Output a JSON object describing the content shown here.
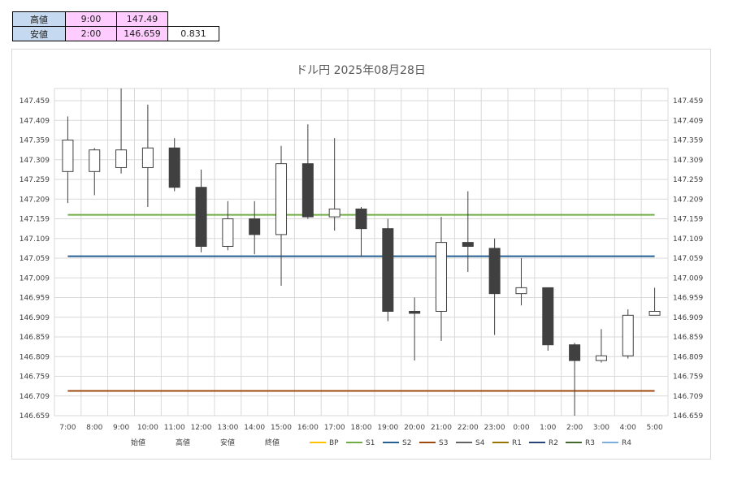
{
  "summary": {
    "high_label": "高値",
    "high_time": "9:00",
    "high_value": "147.49",
    "low_label": "安値",
    "low_time": "2:00",
    "low_value": "146.659",
    "range": "0.831"
  },
  "chart_data": {
    "type": "candlestick",
    "title": "ドル円  2025年08月28日",
    "ylim": [
      146.659,
      147.49
    ],
    "yticks": [
      "147.459",
      "147.409",
      "147.359",
      "147.309",
      "147.259",
      "147.209",
      "147.159",
      "147.109",
      "147.059",
      "147.009",
      "146.959",
      "146.909",
      "146.859",
      "146.809",
      "146.759",
      "146.709",
      "146.659"
    ],
    "categories": [
      "7:00",
      "8:00",
      "9:00",
      "10:00",
      "11:00",
      "12:00",
      "13:00",
      "14:00",
      "15:00",
      "16:00",
      "17:00",
      "18:00",
      "19:00",
      "20:00",
      "21:00",
      "22:00",
      "23:00",
      "0:00",
      "1:00",
      "2:00",
      "3:00",
      "4:00",
      "5:00"
    ],
    "candles": [
      {
        "open": 147.279,
        "high": 147.419,
        "low": 147.199,
        "close": 147.359
      },
      {
        "open": 147.279,
        "high": 147.339,
        "low": 147.219,
        "close": 147.334
      },
      {
        "open": 147.289,
        "high": 147.49,
        "low": 147.274,
        "close": 147.334
      },
      {
        "open": 147.289,
        "high": 147.449,
        "low": 147.189,
        "close": 147.339
      },
      {
        "open": 147.339,
        "high": 147.364,
        "low": 147.229,
        "close": 147.239
      },
      {
        "open": 147.239,
        "high": 147.284,
        "low": 147.074,
        "close": 147.089
      },
      {
        "open": 147.089,
        "high": 147.204,
        "low": 147.079,
        "close": 147.159
      },
      {
        "open": 147.159,
        "high": 147.204,
        "low": 147.069,
        "close": 147.119
      },
      {
        "open": 147.119,
        "high": 147.344,
        "low": 146.989,
        "close": 147.299
      },
      {
        "open": 147.299,
        "high": 147.399,
        "low": 147.159,
        "close": 147.164
      },
      {
        "open": 147.164,
        "high": 147.364,
        "low": 147.129,
        "close": 147.184
      },
      {
        "open": 147.184,
        "high": 147.189,
        "low": 147.064,
        "close": 147.134
      },
      {
        "open": 147.134,
        "high": 147.159,
        "low": 146.899,
        "close": 146.924
      },
      {
        "open": 146.924,
        "high": 146.959,
        "low": 146.799,
        "close": 146.919
      },
      {
        "open": 146.924,
        "high": 147.164,
        "low": 146.849,
        "close": 147.099
      },
      {
        "open": 147.099,
        "high": 147.229,
        "low": 147.024,
        "close": 147.089
      },
      {
        "open": 147.084,
        "high": 147.109,
        "low": 146.864,
        "close": 146.969
      },
      {
        "open": 146.969,
        "high": 147.059,
        "low": 146.939,
        "close": 146.984
      },
      {
        "open": 146.984,
        "high": 146.984,
        "low": 146.824,
        "close": 146.839
      },
      {
        "open": 146.839,
        "high": 146.844,
        "low": 146.659,
        "close": 146.799
      },
      {
        "open": 146.799,
        "high": 146.879,
        "low": 146.794,
        "close": 146.811
      },
      {
        "open": 146.811,
        "high": 146.929,
        "low": 146.804,
        "close": 146.914
      },
      {
        "open": 146.914,
        "high": 146.984,
        "low": 146.914,
        "close": 146.924
      }
    ],
    "hlines": [
      {
        "name": "S1",
        "value": 147.169,
        "color": "#70ad47"
      },
      {
        "name": "S2",
        "value": 147.064,
        "color": "#255e91"
      },
      {
        "name": "S3",
        "value": 146.722,
        "color": "#9e480e"
      }
    ],
    "legend": [
      {
        "name": "始値",
        "color": ""
      },
      {
        "name": "高値",
        "color": ""
      },
      {
        "name": "安値",
        "color": ""
      },
      {
        "name": "終値",
        "color": ""
      },
      {
        "name": "BP",
        "color": "#ffc000"
      },
      {
        "name": "S1",
        "color": "#70ad47"
      },
      {
        "name": "S2",
        "color": "#255e91"
      },
      {
        "name": "S3",
        "color": "#9e480e"
      },
      {
        "name": "S4",
        "color": "#636363"
      },
      {
        "name": "R1",
        "color": "#997300"
      },
      {
        "name": "R2",
        "color": "#264478"
      },
      {
        "name": "R3",
        "color": "#43682b"
      },
      {
        "name": "R4",
        "color": "#7cafdd"
      }
    ],
    "up_color": "#ffffff",
    "down_color": "#404040",
    "grid": true,
    "legend_position": "bottom"
  }
}
